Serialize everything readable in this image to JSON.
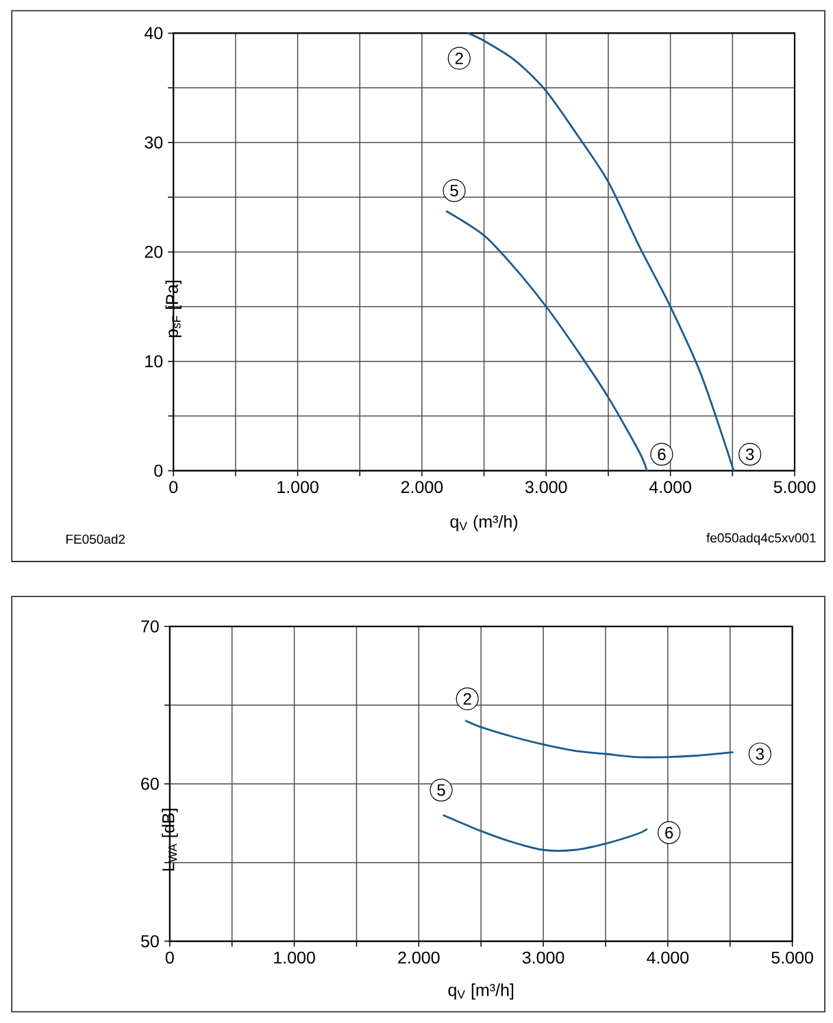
{
  "chart_data": [
    {
      "type": "line",
      "xlabel": "q$_{V}$ (m³/h)",
      "ylabel": "p$_{sF}$ [Pa]",
      "xlim": [
        0,
        5000
      ],
      "ylim": [
        0,
        40
      ],
      "xticks": [
        0,
        {
          "value": 500,
          "label": null
        },
        {
          "value": 1000,
          "label": "1.000"
        },
        {
          "value": 1500,
          "label": null
        },
        {
          "value": 2000,
          "label": "2.000"
        },
        {
          "value": 2500,
          "label": null
        },
        {
          "value": 3000,
          "label": "3.000"
        },
        {
          "value": 3500,
          "label": null
        },
        {
          "value": 4000,
          "label": "4.000"
        },
        {
          "value": 4500,
          "label": null
        },
        {
          "value": 5000,
          "label": "5.000"
        }
      ],
      "yticks": [
        0,
        {
          "value": 5,
          "label": null
        },
        10,
        {
          "value": 15,
          "label": null
        },
        20,
        {
          "value": 25,
          "label": null
        },
        30,
        {
          "value": 35,
          "label": null
        },
        40
      ],
      "grid": true,
      "series": [
        {
          "color": "#1a5c8e",
          "x": [
            2370,
            2500,
            2750,
            3000,
            3250,
            3500,
            3750,
            4000,
            4250,
            4510
          ],
          "values": [
            40,
            39.3,
            37.5,
            34.7,
            30.7,
            26.4,
            20.5,
            15.0,
            8.7,
            0
          ]
        },
        {
          "color": "#1a5c8e",
          "x": [
            2200,
            2500,
            2750,
            3000,
            3250,
            3500,
            3750,
            3810
          ],
          "values": [
            23.7,
            21.5,
            18.5,
            15.0,
            11.0,
            6.7,
            1.7,
            0
          ]
        }
      ],
      "annotations": [
        {
          "text": "2",
          "x": 2300,
          "y": 37.7
        },
        {
          "text": "5",
          "x": 2260,
          "y": 25.6
        },
        {
          "text": "6",
          "x": 3930,
          "y": 1.5
        },
        {
          "text": "3",
          "x": 4640,
          "y": 1.5
        },
        "FE050ad2",
        "fe050adq4c5xv001"
      ]
    },
    {
      "type": "line",
      "xlabel": "q$_{V}$ [m³/h]",
      "ylabel": "L$_{WA}$ [dB]",
      "xlim": [
        0,
        5000
      ],
      "ylim": [
        50,
        70
      ],
      "xticks": [
        0,
        {
          "value": 500,
          "label": null
        },
        {
          "value": 1000,
          "label": "1.000"
        },
        {
          "value": 1500,
          "label": null
        },
        {
          "value": 2000,
          "label": "2.000"
        },
        {
          "value": 2500,
          "label": null
        },
        {
          "value": 3000,
          "label": "3.000"
        },
        {
          "value": 3500,
          "label": null
        },
        {
          "value": 4000,
          "label": "4.000"
        },
        {
          "value": 4500,
          "label": null
        },
        {
          "value": 5000,
          "label": "5.000"
        }
      ],
      "yticks": [
        50,
        {
          "value": 55,
          "label": null
        },
        60,
        {
          "value": 65,
          "label": null
        },
        70
      ],
      "grid": true,
      "series": [
        {
          "color": "#1a5c8e",
          "x": [
            2380,
            2500,
            2750,
            3000,
            3250,
            3500,
            3750,
            4000,
            4250,
            4520
          ],
          "values": [
            64.0,
            63.6,
            63.0,
            62.5,
            62.1,
            61.9,
            61.7,
            61.7,
            61.8,
            62.0
          ]
        },
        {
          "color": "#1a5c8e",
          "x": [
            2200,
            2500,
            2750,
            3000,
            3250,
            3500,
            3750,
            3830
          ],
          "values": [
            58.0,
            57.0,
            56.3,
            55.8,
            55.8,
            56.2,
            56.8,
            57.1
          ]
        }
      ],
      "annotations": [
        {
          "text": "2",
          "x": 2390,
          "y": 65.4
        },
        {
          "text": "3",
          "x": 4740,
          "y": 61.9
        },
        {
          "text": "5",
          "x": 2180,
          "y": 59.6
        },
        {
          "text": "6",
          "x": 4010,
          "y": 56.9
        }
      ]
    }
  ]
}
